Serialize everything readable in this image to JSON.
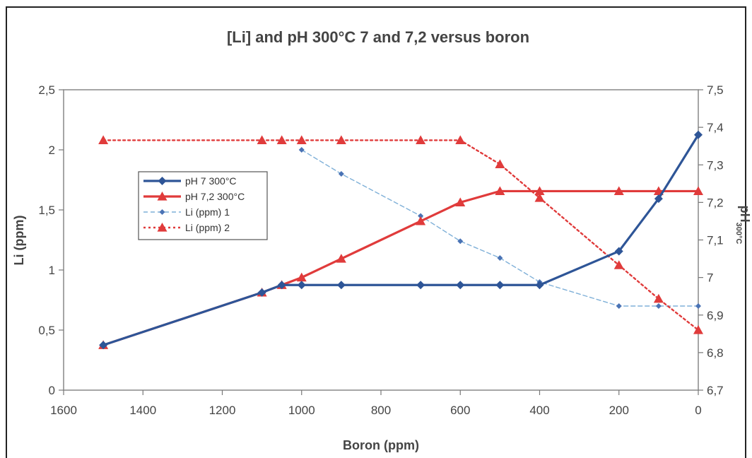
{
  "chart_data": {
    "type": "line",
    "title": "[Li] and  pH 300°C 7 and 7,2 versus boron",
    "xlabel": "Boron (ppm)",
    "ylabel_left": "Li (ppm)",
    "ylabel_right_main": "pH",
    "ylabel_right_sub": "300°C",
    "xlim": [
      1600,
      0
    ],
    "x_reversed": true,
    "ylim_left": [
      0,
      2.5
    ],
    "ylim_right": [
      6.7,
      7.5
    ],
    "x_ticks": [
      1600,
      1400,
      1200,
      1000,
      800,
      600,
      400,
      200,
      0
    ],
    "x_tick_labels": [
      "1600",
      "1400",
      "1200",
      "1000",
      "800",
      "600",
      "400",
      "200",
      "0"
    ],
    "y_left_ticks": [
      0,
      0.5,
      1,
      1.5,
      2,
      2.5
    ],
    "y_left_tick_labels": [
      "0",
      "0,5",
      "1",
      "1,5",
      "2",
      "2,5"
    ],
    "y_right_ticks": [
      6.7,
      6.8,
      6.9,
      7.0,
      7.1,
      7.2,
      7.3,
      7.4,
      7.5
    ],
    "y_right_tick_labels": [
      "6,7",
      "6,8",
      "6,9",
      "7",
      "7,1",
      "7,2",
      "7,3",
      "7,4",
      "7,5"
    ],
    "grid": false,
    "legend_position": "center-left",
    "series": [
      {
        "name": "pH 7 300°C",
        "axis": "right",
        "color": "#2e5597",
        "style": "solid",
        "marker": "diamond",
        "x": [
          1500,
          1100,
          1050,
          1000,
          900,
          700,
          600,
          500,
          400,
          200,
          100,
          0
        ],
        "y": [
          6.82,
          6.96,
          6.98,
          6.98,
          6.98,
          6.98,
          6.98,
          6.98,
          6.98,
          7.07,
          7.21,
          7.38
        ]
      },
      {
        "name": "pH 7,2 300°C",
        "axis": "right",
        "color": "#e03b3b",
        "style": "solid",
        "marker": "triangle",
        "x": [
          1500,
          1100,
          1050,
          1000,
          900,
          700,
          600,
          500,
          400,
          200,
          100,
          0
        ],
        "y": [
          6.82,
          6.96,
          6.98,
          7.0,
          7.05,
          7.15,
          7.2,
          7.23,
          7.23,
          7.23,
          7.23,
          7.23
        ]
      },
      {
        "name": "Li (ppm) 1",
        "axis": "left",
        "color": "#7fb0d8",
        "style": "dashed",
        "marker": "small-diamond",
        "x": [
          1000,
          900,
          700,
          600,
          500,
          400,
          200,
          100,
          0
        ],
        "y": [
          2.0,
          1.8,
          1.45,
          1.24,
          1.1,
          0.9,
          0.7,
          0.7,
          0.7
        ]
      },
      {
        "name": "Li (ppm) 2",
        "axis": "left",
        "color": "#e03b3b",
        "style": "dotted",
        "marker": "triangle",
        "x": [
          1500,
          1100,
          1050,
          1000,
          900,
          700,
          600,
          500,
          400,
          200,
          100,
          0
        ],
        "y": [
          2.08,
          2.08,
          2.08,
          2.08,
          2.08,
          2.08,
          2.08,
          1.88,
          1.6,
          1.04,
          0.76,
          0.5
        ]
      }
    ]
  }
}
